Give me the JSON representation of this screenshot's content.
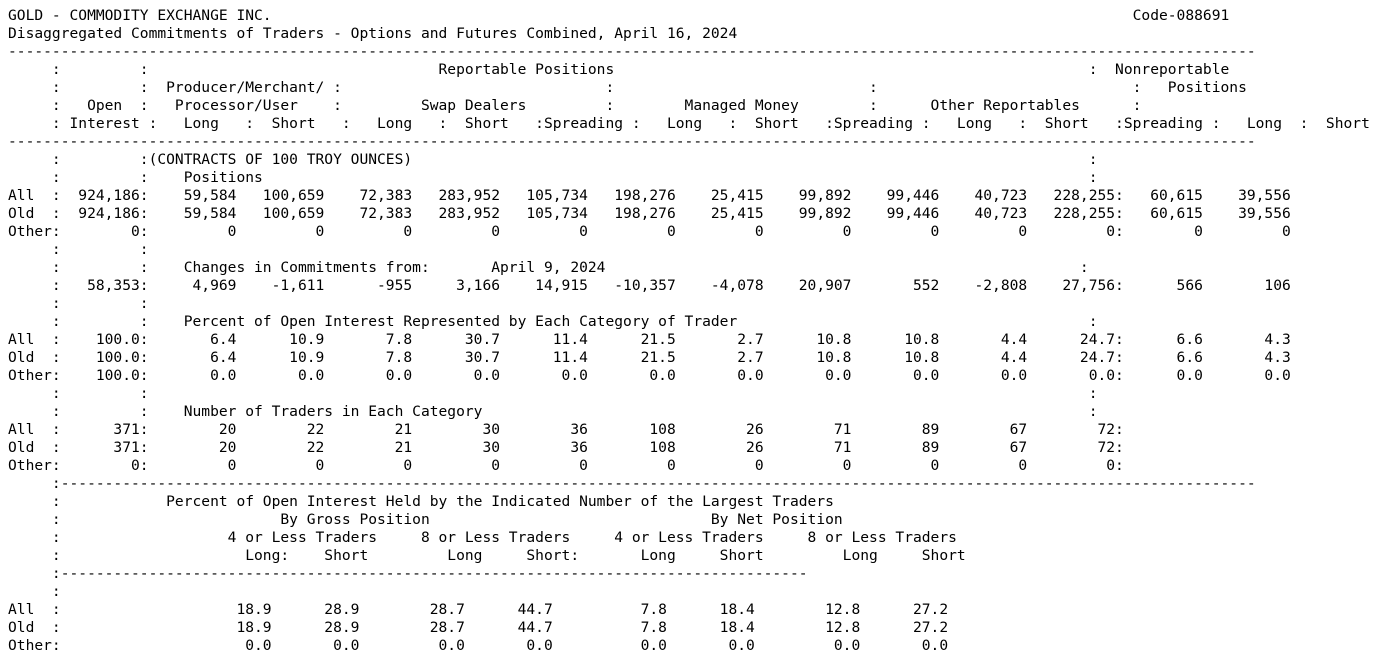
{
  "report": {
    "lines": [
      "GOLD - COMMODITY EXCHANGE INC.                                                                                                  Code-088691",
      "Disaggregated Commitments of Traders - Options and Futures Combined, April 16, 2024",
      "----------------------------------------------------------------------------------------------------------------------------------------------",
      "     :         :                                 Reportable Positions                                                      :  Nonreportable",
      "     :         :  Producer/Merchant/ :                              :                             :                             :   Positions",
      "     :   Open  :   Processor/User    :         Swap Dealers         :        Managed Money        :      Other Reportables      :",
      "     : Interest :   Long   :  Short   :   Long   :  Short   :Spreading :   Long   :  Short   :Spreading :   Long   :  Short   :Spreading :   Long  :  Short",
      "----------------------------------------------------------------------------------------------------------------------------------------------",
      "     :         :(CONTRACTS OF 100 TROY OUNCES)                                                                             :",
      "     :         :    Positions                                                                                              :",
      "All  :  924,186:    59,584   100,659    72,383   283,952   105,734   198,276    25,415    99,892    99,446    40,723   228,255:   60,615    39,556",
      "Old  :  924,186:    59,584   100,659    72,383   283,952   105,734   198,276    25,415    99,892    99,446    40,723   228,255:   60,615    39,556",
      "Other:        0:         0         0         0         0         0         0         0         0         0         0         0:        0         0",
      "     :         :",
      "     :         :    Changes in Commitments from:       April 9, 2024                                                      :",
      "     :   58,353:     4,969    -1,611      -955     3,166    14,915   -10,357    -4,078    20,907       552    -2,808    27,756:      566       106",
      "     :         :",
      "     :         :    Percent of Open Interest Represented by Each Category of Trader                                        :",
      "All  :    100.0:       6.4      10.9       7.8      30.7      11.4      21.5       2.7      10.8      10.8       4.4      24.7:      6.6       4.3",
      "Old  :    100.0:       6.4      10.9       7.8      30.7      11.4      21.5       2.7      10.8      10.8       4.4      24.7:      6.6       4.3",
      "Other:    100.0:       0.0       0.0       0.0       0.0       0.0       0.0       0.0       0.0       0.0       0.0       0.0:      0.0       0.0",
      "     :         :                                                                                                           :",
      "     :         :    Number of Traders in Each Category                                                                     :",
      "All  :      371:        20        22        21        30        36       108        26        71        89        67        72:",
      "Old  :      371:        20        22        21        30        36       108        26        71        89        67        72:",
      "Other:        0:         0         0         0         0         0         0         0         0         0         0         0:",
      "     :----------------------------------------------------------------------------------------------------------------------------------------",
      "     :            Percent of Open Interest Held by the Indicated Number of the Largest Traders",
      "     :                         By Gross Position                                By Net Position",
      "     :                   4 or Less Traders     8 or Less Traders     4 or Less Traders     8 or Less Traders",
      "     :                     Long:    Short         Long     Short:       Long     Short         Long     Short",
      "     :-------------------------------------------------------------------------------------",
      "     :",
      "All  :                    18.9      28.9        28.7      44.7          7.8      18.4        12.8      27.2",
      "Old  :                    18.9      28.9        28.7      44.7          7.8      18.4        12.8      27.2",
      "Other:                     0.0       0.0         0.0       0.0          0.0       0.0         0.0       0.0"
    ]
  }
}
